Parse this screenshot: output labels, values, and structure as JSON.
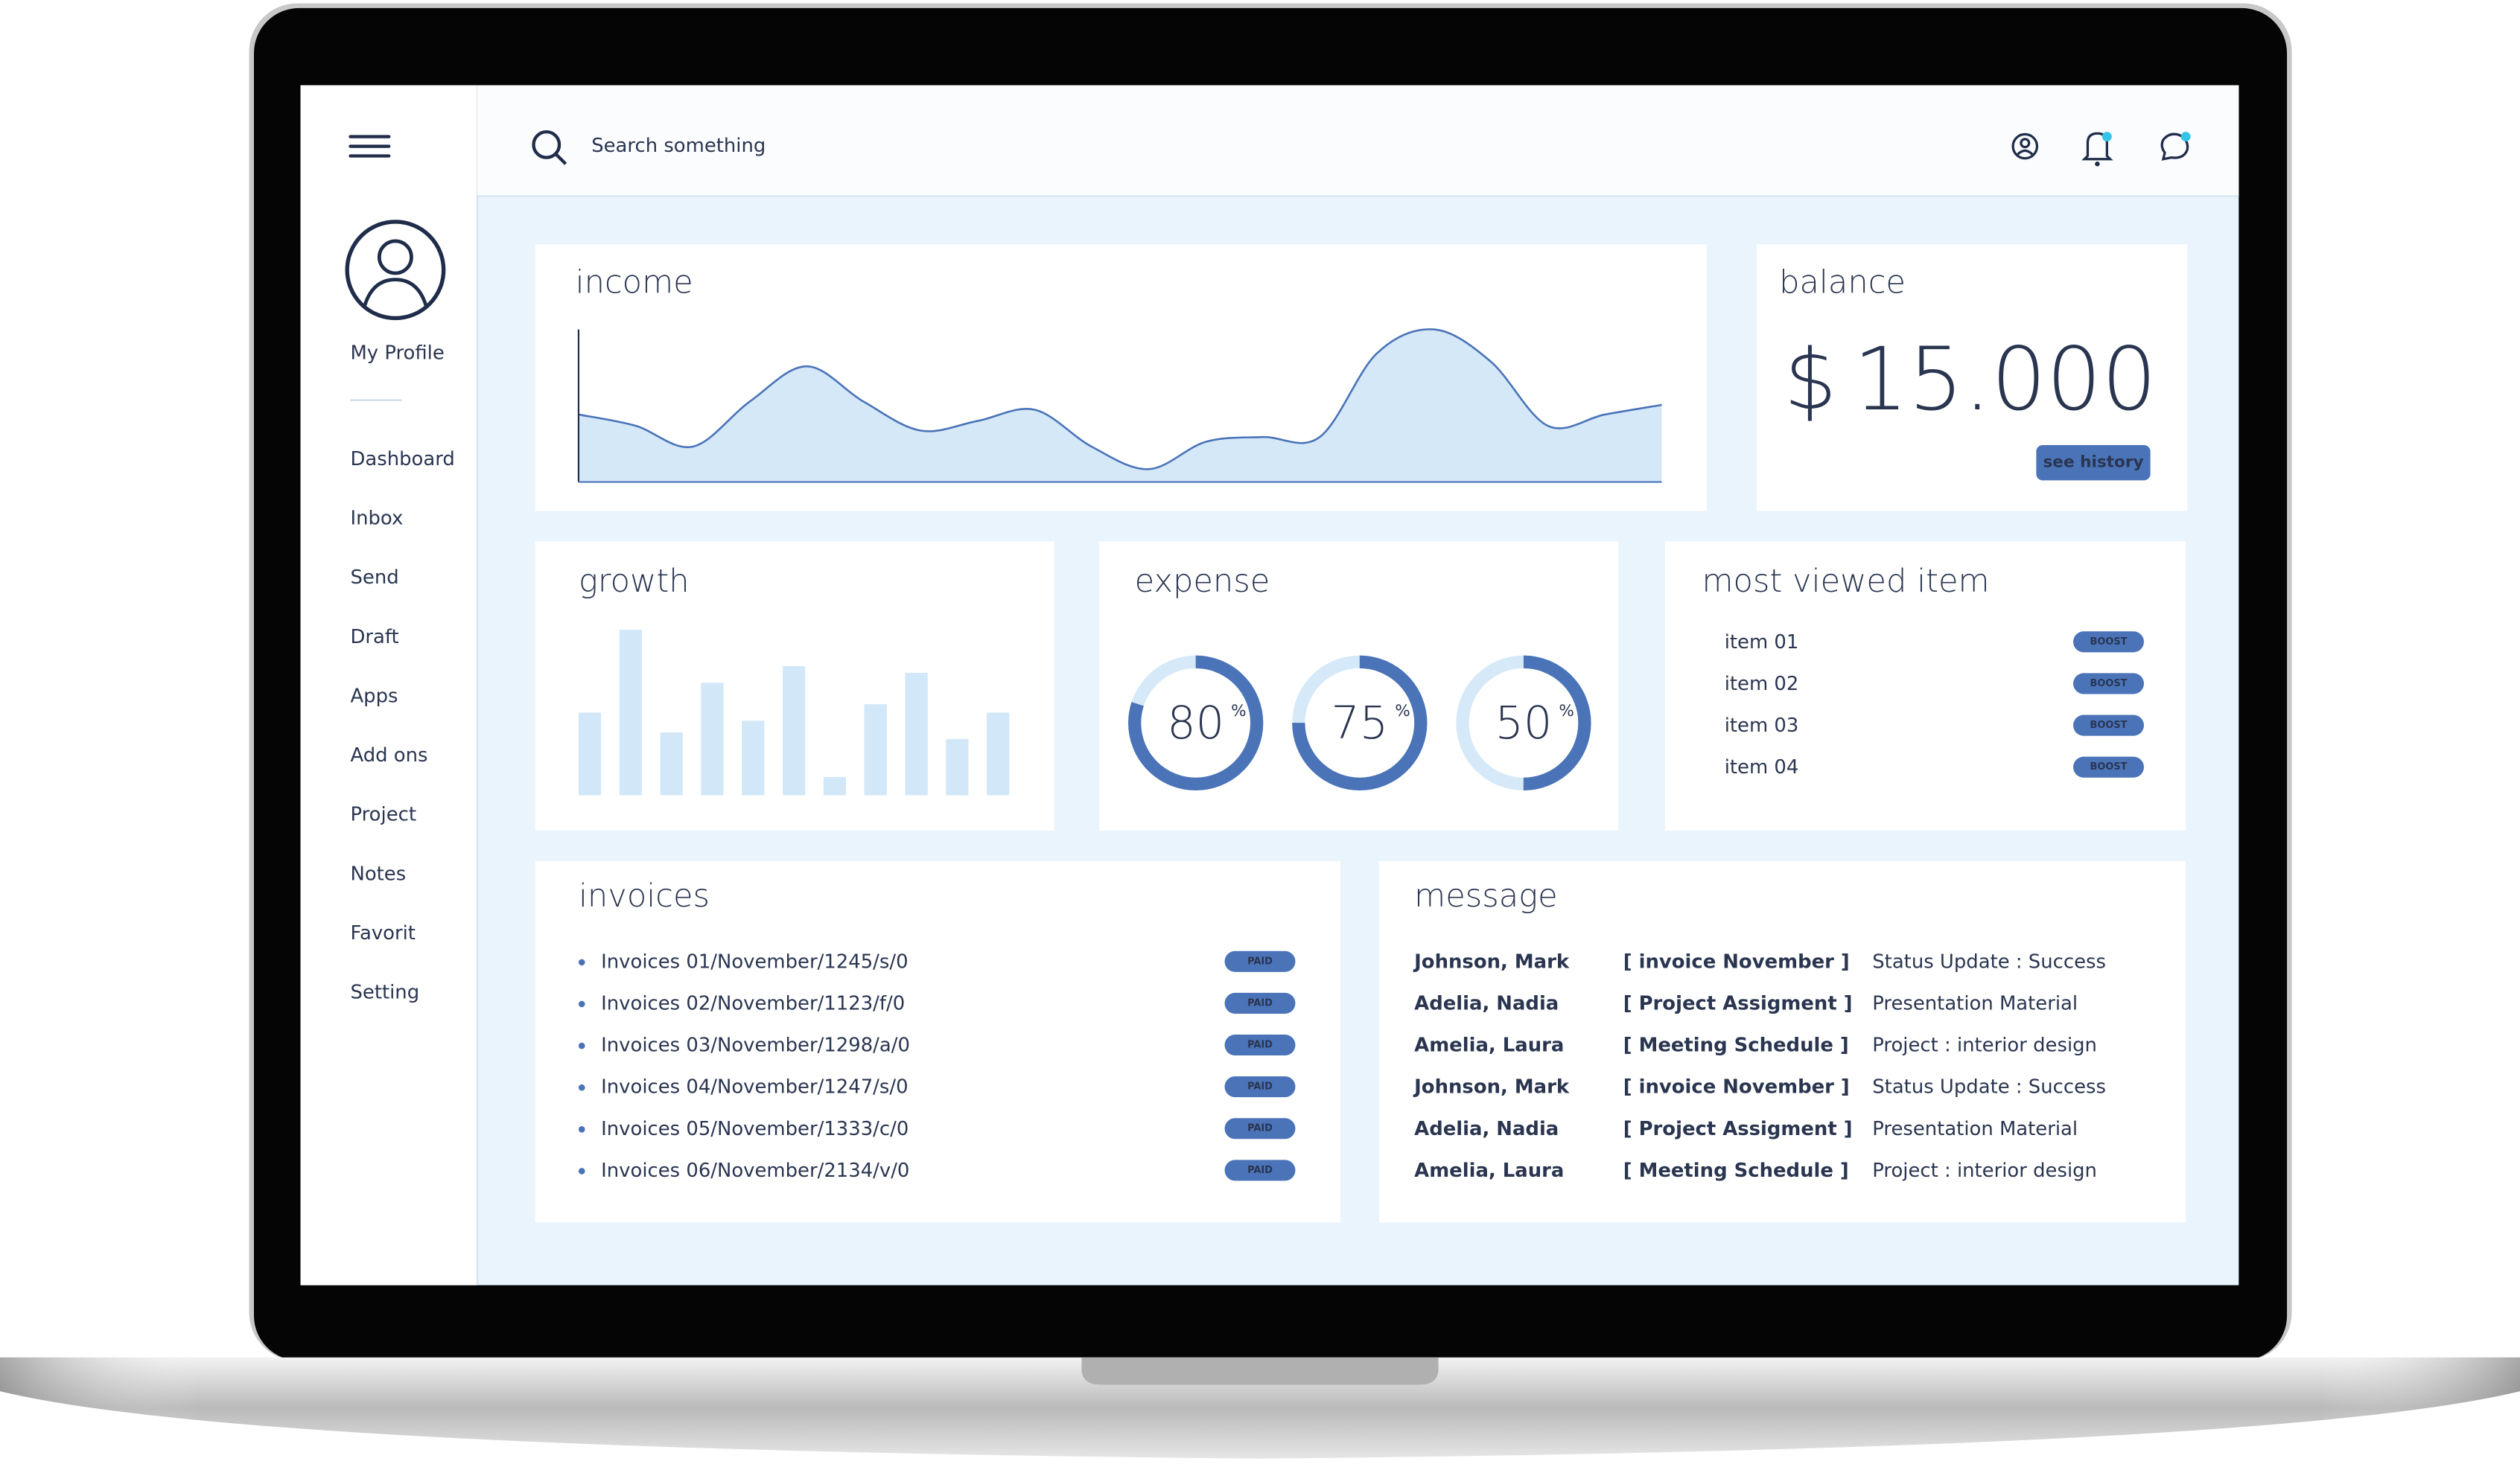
{
  "search_placeholder": "Search something",
  "sidebar": {
    "profile": "My Profile",
    "menu": [
      "Dashboard",
      "Inbox",
      "Send",
      "Draft",
      "Apps",
      "Add ons",
      "Project",
      "Notes",
      "Favorit",
      "Setting"
    ]
  },
  "income": {
    "title": "income",
    "values": [
      42,
      35,
      22,
      50,
      72,
      50,
      32,
      38,
      45,
      22,
      8,
      25,
      28,
      28,
      80,
      95,
      75,
      35,
      42,
      48
    ],
    "ylim": [
      0,
      100
    ],
    "color": "#4a73b8"
  },
  "balance": {
    "title": "balance",
    "currency": "$",
    "amount": "15.000",
    "button": "see history"
  },
  "growth": {
    "title": "growth",
    "values": [
      50,
      100,
      38,
      68,
      45,
      78,
      11,
      55,
      74,
      34,
      50
    ],
    "ylim": [
      0,
      100
    ],
    "color": "#d2e7f8"
  },
  "expense": {
    "title": "expense",
    "values": [
      80,
      75,
      50
    ],
    "unit": "%",
    "color": "#4a73b8"
  },
  "most_viewed": {
    "title": "most viewed item",
    "items": [
      "item 01",
      "item 02",
      "item 03",
      "item 04"
    ],
    "button": "BOOST"
  },
  "invoices": {
    "title": "invoices",
    "status": "PAID",
    "items": [
      "Invoices 01/November/1245/s/0",
      "Invoices 02/November/1123/f/0",
      "Invoices 03/November/1298/a/0",
      "Invoices 04/November/1247/s/0",
      "Invoices 05/November/1333/c/0",
      "Invoices 06/November/2134/v/0"
    ]
  },
  "message": {
    "title": "message",
    "rows": [
      [
        "Johnson, Mark",
        "[ invoice November ]",
        "Status Update : Success"
      ],
      [
        "Adelia, Nadia",
        "[ Project Assigment ]",
        "Presentation Material"
      ],
      [
        "Amelia, Laura",
        "[ Meeting Schedule ]",
        "Project : interior design"
      ],
      [
        "Johnson, Mark",
        "[ invoice November ]",
        "Status Update : Success"
      ],
      [
        "Adelia, Nadia",
        "[ Project Assigment ]",
        "Presentation Material"
      ],
      [
        "Amelia, Laura",
        "[ Meeting Schedule ]",
        "Project : interior design"
      ]
    ]
  }
}
